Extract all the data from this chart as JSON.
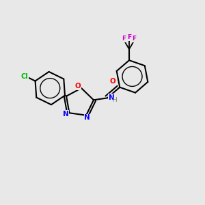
{
  "background_color": "#e8e8e8",
  "bond_color": "#000000",
  "atom_colors": {
    "O": "#ff0000",
    "N": "#0000ff",
    "Cl": "#00bb00",
    "F": "#cc00cc",
    "C": "#000000",
    "H": "#888888"
  },
  "fig_width": 3.0,
  "fig_height": 3.0,
  "dpi": 100
}
